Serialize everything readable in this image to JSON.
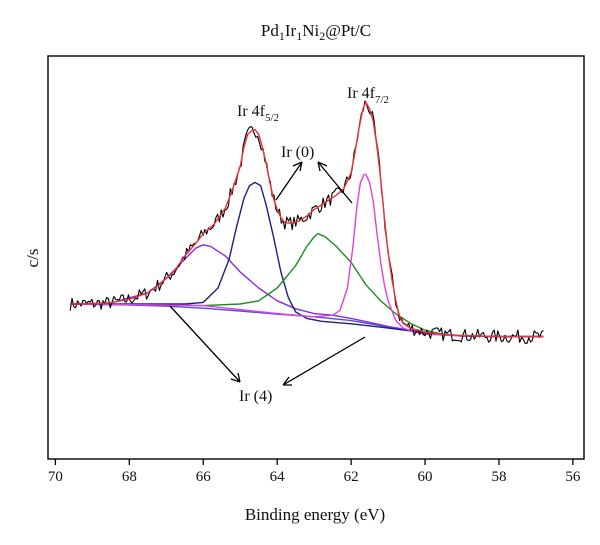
{
  "chart_data": {
    "type": "line",
    "title": "Pd₁Ir₁Ni₂@Pt/C",
    "title_parts": {
      "pd": "Pd",
      "pd_sub": "1",
      "ir": "Ir",
      "ir_sub": "1",
      "ni": "Ni",
      "ni_sub": "2",
      "rest": "@Pt/C"
    },
    "xlabel": "Binding energy (eV)",
    "ylabel": "c/s",
    "xlim": [
      70.2,
      55.7
    ],
    "x_reversed": true,
    "xticks": [
      70,
      68,
      66,
      64,
      62,
      60,
      58,
      56
    ],
    "ylim": [
      0,
      100
    ],
    "y_ticks_shown": false,
    "grid": false,
    "annotations": {
      "ir_5_2": {
        "text": "Ir 4f",
        "sub": "5/2"
      },
      "ir_7_2": {
        "text": "Ir 4f",
        "sub": "7/2"
      },
      "ir0": "Ir (0)",
      "ir4": "Ir (4)"
    },
    "series": [
      {
        "key": "raw",
        "color": "#000000",
        "x_range": [
          69.6,
          56.8
        ],
        "values": [
          [
            69.6,
            30
          ],
          [
            69.0,
            30.1
          ],
          [
            68.5,
            30.4
          ],
          [
            68.0,
            31.5
          ],
          [
            67.5,
            33.5
          ],
          [
            67.2,
            36
          ],
          [
            66.8,
            40
          ],
          [
            66.5,
            45
          ],
          [
            66.2,
            49
          ],
          [
            66.0,
            52
          ],
          [
            65.7,
            55
          ],
          [
            65.4,
            60
          ],
          [
            65.2,
            66
          ],
          [
            65.0,
            73
          ],
          [
            64.9,
            79
          ],
          [
            64.8,
            83
          ],
          [
            64.7,
            84
          ],
          [
            64.6,
            84.5
          ],
          [
            64.5,
            83
          ],
          [
            64.4,
            79
          ],
          [
            64.3,
            74
          ],
          [
            64.2,
            68
          ],
          [
            64.1,
            63
          ],
          [
            64.0,
            59.5
          ],
          [
            63.9,
            57
          ],
          [
            63.8,
            55.5
          ],
          [
            63.6,
            55.2
          ],
          [
            63.4,
            56
          ],
          [
            63.2,
            57.5
          ],
          [
            63.0,
            59.5
          ],
          [
            62.8,
            61
          ],
          [
            62.6,
            62.5
          ],
          [
            62.4,
            64
          ],
          [
            62.2,
            66
          ],
          [
            62.0,
            71
          ],
          [
            61.9,
            77
          ],
          [
            61.8,
            84
          ],
          [
            61.7,
            90
          ],
          [
            61.65,
            92
          ],
          [
            61.6,
            93
          ],
          [
            61.5,
            91
          ],
          [
            61.4,
            87
          ],
          [
            61.3,
            79
          ],
          [
            61.2,
            69
          ],
          [
            61.1,
            57
          ],
          [
            61.0,
            46
          ],
          [
            60.9,
            38
          ],
          [
            60.8,
            31.5
          ],
          [
            60.7,
            26.5
          ],
          [
            60.6,
            24
          ],
          [
            60.4,
            22.5
          ],
          [
            60.2,
            21.8
          ],
          [
            60.0,
            21.2
          ],
          [
            59.5,
            20.5
          ],
          [
            59.0,
            20.2
          ],
          [
            58.0,
            19.8
          ],
          [
            57.0,
            19.8
          ],
          [
            56.8,
            19.8
          ]
        ]
      },
      {
        "key": "envelope",
        "color": "#e8313a",
        "values": [
          [
            69.6,
            30
          ],
          [
            69.0,
            30.1
          ],
          [
            68.5,
            30.4
          ],
          [
            68.0,
            31.5
          ],
          [
            67.5,
            33.5
          ],
          [
            67.2,
            36
          ],
          [
            66.8,
            40
          ],
          [
            66.5,
            45
          ],
          [
            66.2,
            49
          ],
          [
            66.0,
            52
          ],
          [
            65.7,
            55
          ],
          [
            65.4,
            60
          ],
          [
            65.2,
            66
          ],
          [
            65.0,
            73
          ],
          [
            64.9,
            79
          ],
          [
            64.8,
            83
          ],
          [
            64.7,
            84
          ],
          [
            64.6,
            84.5
          ],
          [
            64.5,
            83
          ],
          [
            64.4,
            79
          ],
          [
            64.3,
            74
          ],
          [
            64.2,
            68
          ],
          [
            64.1,
            63
          ],
          [
            64.0,
            59.5
          ],
          [
            63.9,
            57
          ],
          [
            63.8,
            55.5
          ],
          [
            63.6,
            55.2
          ],
          [
            63.4,
            56
          ],
          [
            63.2,
            57.5
          ],
          [
            63.0,
            59.5
          ],
          [
            62.8,
            61
          ],
          [
            62.6,
            62.5
          ],
          [
            62.4,
            64
          ],
          [
            62.2,
            66
          ],
          [
            62.0,
            71
          ],
          [
            61.9,
            77
          ],
          [
            61.8,
            84
          ],
          [
            61.7,
            90
          ],
          [
            61.65,
            92
          ],
          [
            61.6,
            93
          ],
          [
            61.5,
            91
          ],
          [
            61.4,
            87
          ],
          [
            61.3,
            79
          ],
          [
            61.2,
            69
          ],
          [
            61.1,
            57
          ],
          [
            61.0,
            46
          ],
          [
            60.9,
            38
          ],
          [
            60.8,
            31.5
          ],
          [
            60.7,
            26.5
          ],
          [
            60.6,
            24
          ],
          [
            60.4,
            22.5
          ],
          [
            60.2,
            21.8
          ],
          [
            60.0,
            21.2
          ],
          [
            59.5,
            20.5
          ],
          [
            59.0,
            20.2
          ],
          [
            58.0,
            19.8
          ],
          [
            57.0,
            19.8
          ],
          [
            56.8,
            19.8
          ]
        ]
      },
      {
        "key": "ir4_low",
        "color": "#8a2be2",
        "values": [
          [
            69.6,
            30
          ],
          [
            68.5,
            30.3
          ],
          [
            67.5,
            33.5
          ],
          [
            67.0,
            38
          ],
          [
            66.5,
            44
          ],
          [
            66.2,
            47.5
          ],
          [
            66.0,
            48.5
          ],
          [
            65.8,
            48
          ],
          [
            65.4,
            45
          ],
          [
            65.0,
            40
          ],
          [
            64.5,
            35
          ],
          [
            64.0,
            31
          ],
          [
            63.5,
            28.5
          ],
          [
            63.0,
            27
          ],
          [
            62.5,
            26.5
          ],
          [
            62.0,
            25.5
          ],
          [
            61.0,
            23
          ],
          [
            60.0,
            21
          ],
          [
            59.0,
            20
          ],
          [
            58.0,
            19.8
          ],
          [
            56.8,
            19.8
          ]
        ]
      },
      {
        "key": "ir0_low",
        "color": "#1a237e",
        "values": [
          [
            69.6,
            30
          ],
          [
            66.5,
            30
          ],
          [
            66.0,
            30.5
          ],
          [
            65.6,
            35
          ],
          [
            65.3,
            44
          ],
          [
            65.1,
            54
          ],
          [
            64.9,
            63
          ],
          [
            64.75,
            67
          ],
          [
            64.6,
            68
          ],
          [
            64.45,
            67
          ],
          [
            64.3,
            61
          ],
          [
            64.1,
            51
          ],
          [
            63.9,
            40
          ],
          [
            63.7,
            32
          ],
          [
            63.5,
            27.5
          ],
          [
            63.2,
            25.5
          ],
          [
            62.8,
            24.6
          ],
          [
            62.0,
            23.8
          ],
          [
            61.0,
            22.5
          ],
          [
            60.0,
            21
          ],
          [
            59.0,
            20
          ],
          [
            58.0,
            19.8
          ],
          [
            56.8,
            19.8
          ]
        ]
      },
      {
        "key": "ir4_high",
        "color": "#1e8c1e",
        "values": [
          [
            69.6,
            30
          ],
          [
            66.0,
            29.5
          ],
          [
            65.0,
            30
          ],
          [
            64.5,
            31
          ],
          [
            64.0,
            35
          ],
          [
            63.5,
            42
          ],
          [
            63.2,
            48
          ],
          [
            63.0,
            51
          ],
          [
            62.9,
            52
          ],
          [
            62.7,
            51
          ],
          [
            62.4,
            48
          ],
          [
            62.0,
            43
          ],
          [
            61.6,
            36
          ],
          [
            61.2,
            31
          ],
          [
            60.8,
            27
          ],
          [
            60.4,
            24
          ],
          [
            60.0,
            21.8
          ],
          [
            59.5,
            20.5
          ],
          [
            59.0,
            20
          ],
          [
            58.0,
            19.8
          ],
          [
            56.8,
            19.8
          ]
        ]
      },
      {
        "key": "ir0_high",
        "color": "#e040e0",
        "values": [
          [
            69.6,
            30
          ],
          [
            66.0,
            29.5
          ],
          [
            64.0,
            27
          ],
          [
            63.0,
            26
          ],
          [
            62.5,
            26.5
          ],
          [
            62.3,
            28
          ],
          [
            62.1,
            35
          ],
          [
            61.95,
            48
          ],
          [
            61.85,
            60
          ],
          [
            61.75,
            68
          ],
          [
            61.65,
            70.5
          ],
          [
            61.6,
            70.5
          ],
          [
            61.5,
            68
          ],
          [
            61.4,
            62
          ],
          [
            61.3,
            52
          ],
          [
            61.2,
            43
          ],
          [
            61.1,
            36
          ],
          [
            61.0,
            31
          ],
          [
            60.8,
            25
          ],
          [
            60.6,
            22.5
          ],
          [
            60.3,
            21.2
          ],
          [
            60.0,
            20.6
          ],
          [
            59.0,
            20
          ],
          [
            58.0,
            19.8
          ],
          [
            56.8,
            19.8
          ]
        ]
      },
      {
        "key": "background",
        "color": "#5b4bd8",
        "values": [
          [
            69.6,
            30
          ],
          [
            68.0,
            29.7
          ],
          [
            67.0,
            29.3
          ],
          [
            66.0,
            28.7
          ],
          [
            65.0,
            27.8
          ],
          [
            64.0,
            26.8
          ],
          [
            63.0,
            26
          ],
          [
            62.0,
            24.8
          ],
          [
            61.0,
            22.8
          ],
          [
            60.0,
            21
          ],
          [
            59.0,
            20.1
          ],
          [
            58.0,
            19.8
          ],
          [
            56.8,
            19.8
          ]
        ]
      }
    ]
  }
}
